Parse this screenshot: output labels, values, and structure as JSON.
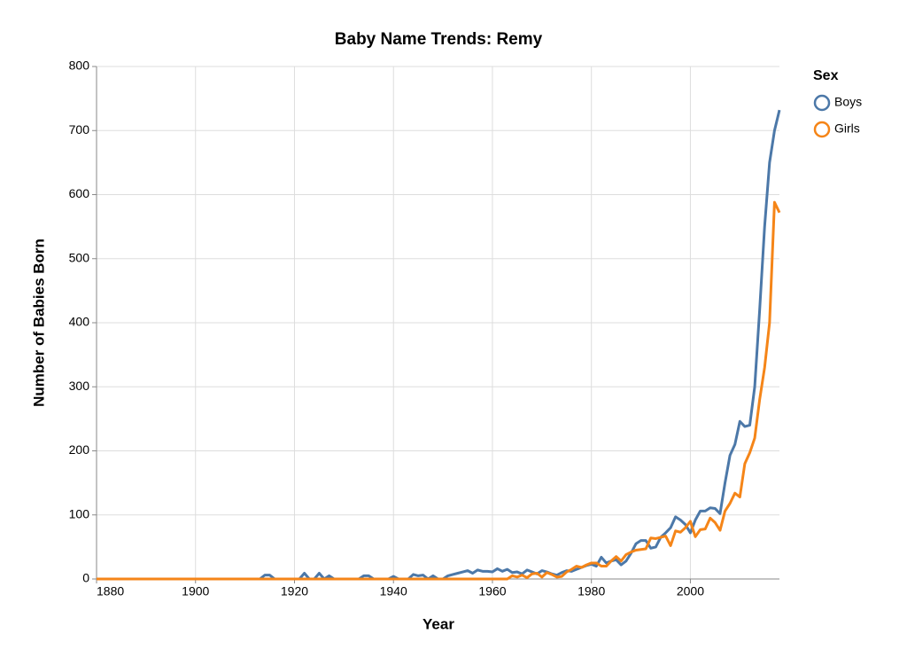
{
  "chart_data": {
    "type": "line",
    "title": "Baby Name Trends: Remy",
    "x_label": "Year",
    "y_label": "Number of Babies Born",
    "legend_title": "Sex",
    "legend_position": "right",
    "grid": true,
    "xlim": [
      1880,
      2018
    ],
    "xticks": [
      1880,
      1900,
      1920,
      1940,
      1960,
      1980,
      2000
    ],
    "ylim": [
      0,
      800
    ],
    "yticks": [
      0,
      100,
      200,
      300,
      400,
      500,
      600,
      700,
      800
    ],
    "x": [
      1880,
      1881,
      1882,
      1883,
      1884,
      1885,
      1886,
      1887,
      1888,
      1889,
      1890,
      1891,
      1892,
      1893,
      1894,
      1895,
      1896,
      1897,
      1898,
      1899,
      1900,
      1901,
      1902,
      1903,
      1904,
      1905,
      1906,
      1907,
      1908,
      1909,
      1910,
      1911,
      1912,
      1913,
      1914,
      1915,
      1916,
      1917,
      1918,
      1919,
      1920,
      1921,
      1922,
      1923,
      1924,
      1925,
      1926,
      1927,
      1928,
      1929,
      1930,
      1931,
      1932,
      1933,
      1934,
      1935,
      1936,
      1937,
      1938,
      1939,
      1940,
      1941,
      1942,
      1943,
      1944,
      1945,
      1946,
      1947,
      1948,
      1949,
      1950,
      1951,
      1952,
      1953,
      1954,
      1955,
      1956,
      1957,
      1958,
      1959,
      1960,
      1961,
      1962,
      1963,
      1964,
      1965,
      1966,
      1967,
      1968,
      1969,
      1970,
      1971,
      1972,
      1973,
      1974,
      1975,
      1976,
      1977,
      1978,
      1979,
      1980,
      1981,
      1982,
      1983,
      1984,
      1985,
      1986,
      1987,
      1988,
      1989,
      1990,
      1991,
      1992,
      1993,
      1994,
      1995,
      1996,
      1997,
      1998,
      1999,
      2000,
      2001,
      2002,
      2003,
      2004,
      2005,
      2006,
      2007,
      2008,
      2009,
      2010,
      2011,
      2012,
      2013,
      2014,
      2015,
      2016,
      2017,
      2018
    ],
    "series": [
      {
        "name": "Boys",
        "color": "#4c78a8",
        "values": [
          0,
          0,
          0,
          0,
          0,
          0,
          0,
          0,
          0,
          0,
          0,
          0,
          0,
          0,
          0,
          0,
          0,
          0,
          0,
          0,
          0,
          0,
          0,
          0,
          0,
          0,
          0,
          0,
          0,
          0,
          0,
          0,
          0,
          0,
          6,
          6,
          0,
          0,
          0,
          0,
          0,
          0,
          9,
          0,
          0,
          9,
          0,
          5,
          0,
          0,
          0,
          0,
          0,
          0,
          5,
          5,
          0,
          0,
          0,
          0,
          4,
          0,
          0,
          0,
          7,
          5,
          6,
          0,
          5,
          0,
          0,
          5,
          7,
          9,
          11,
          13,
          9,
          14,
          12,
          12,
          11,
          16,
          12,
          15,
          10,
          11,
          8,
          14,
          11,
          8,
          13,
          11,
          8,
          6,
          10,
          13,
          12,
          15,
          18,
          21,
          23,
          20,
          34,
          25,
          28,
          30,
          22,
          28,
          40,
          55,
          60,
          60,
          48,
          50,
          65,
          72,
          80,
          97,
          92,
          85,
          72,
          92,
          106,
          106,
          111,
          110,
          102,
          150,
          193,
          210,
          246,
          238,
          240,
          300,
          420,
          550,
          650,
          700,
          732
        ]
      },
      {
        "name": "Girls",
        "color": "#f58518",
        "values": [
          0,
          0,
          0,
          0,
          0,
          0,
          0,
          0,
          0,
          0,
          0,
          0,
          0,
          0,
          0,
          0,
          0,
          0,
          0,
          0,
          0,
          0,
          0,
          0,
          0,
          0,
          0,
          0,
          0,
          0,
          0,
          0,
          0,
          0,
          0,
          0,
          0,
          0,
          0,
          0,
          0,
          0,
          0,
          0,
          0,
          0,
          0,
          0,
          0,
          0,
          0,
          0,
          0,
          0,
          0,
          0,
          0,
          0,
          0,
          0,
          0,
          0,
          0,
          0,
          0,
          0,
          0,
          0,
          0,
          0,
          0,
          0,
          0,
          0,
          0,
          0,
          0,
          0,
          0,
          0,
          0,
          0,
          0,
          0,
          5,
          3,
          6,
          2,
          8,
          9,
          3,
          10,
          7,
          3,
          4,
          11,
          15,
          20,
          18,
          22,
          25,
          25,
          20,
          20,
          28,
          35,
          28,
          38,
          42,
          45,
          46,
          47,
          64,
          63,
          65,
          67,
          52,
          75,
          73,
          80,
          90,
          66,
          77,
          78,
          95,
          88,
          76,
          106,
          118,
          134,
          128,
          180,
          197,
          220,
          280,
          330,
          400,
          588,
          572
        ]
      }
    ]
  }
}
